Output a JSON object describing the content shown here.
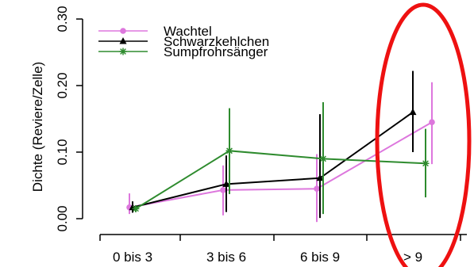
{
  "chart_data": {
    "type": "line",
    "title": "",
    "xlabel": "",
    "ylabel": "Dichte (Reviere/Zelle)",
    "categories": [
      "0 bis 3",
      "3 bis 6",
      "6 bis 9",
      "> 9"
    ],
    "y_ticks": [
      "0.00",
      "0.10",
      "0.20",
      "0.30"
    ],
    "ylim": [
      -0.01,
      0.32
    ],
    "legend_position": "top-left",
    "grid": false,
    "series": [
      {
        "name": "Wachtel",
        "color": "#dd77dd",
        "marker": "circle",
        "values": [
          0.017,
          0.043,
          0.045,
          0.145
        ],
        "err_low": [
          0.007,
          0.005,
          -0.005,
          0.082
        ],
        "err_high": [
          0.038,
          0.08,
          0.097,
          0.205
        ]
      },
      {
        "name": "Schwarzkehlchen",
        "color": "#000000",
        "marker": "triangle",
        "values": [
          0.017,
          0.052,
          0.061,
          0.16
        ],
        "err_low": [
          0.009,
          0.01,
          0.001,
          0.1
        ],
        "err_high": [
          0.026,
          0.095,
          0.157,
          0.222
        ]
      },
      {
        "name": "Sumpfrohrsänger",
        "color": "#2e8b2e",
        "marker": "star",
        "values": [
          0.015,
          0.102,
          0.09,
          0.083
        ],
        "err_low": [
          0.01,
          0.037,
          0.007,
          0.032
        ],
        "err_high": [
          0.02,
          0.166,
          0.175,
          0.135
        ]
      }
    ]
  },
  "annotation": {
    "type": "ellipse",
    "color": "#ee1111",
    "target_category": "> 9"
  }
}
